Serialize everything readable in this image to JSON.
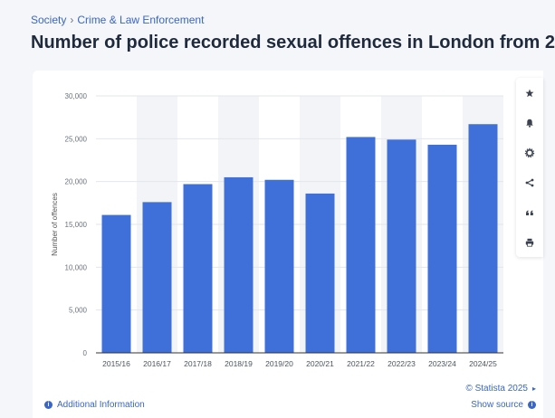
{
  "breadcrumb": {
    "items": [
      "Society",
      "Crime & Law Enforcement"
    ],
    "separator": "›"
  },
  "page": {
    "title": "Number of police recorded sexual offences in London from 2"
  },
  "toolbar": {
    "icons": [
      "star-icon",
      "bell-icon",
      "gear-icon",
      "share-icon",
      "quote-icon",
      "print-icon"
    ]
  },
  "footer": {
    "additional_info": "Additional Information",
    "copyright": "© Statista 2025",
    "show_source": "Show source"
  },
  "colors": {
    "bar": "#3f6fd8",
    "link": "#3a66c4",
    "band": "#f3f4f7"
  },
  "chart_data": {
    "type": "bar",
    "categories": [
      "2015/16",
      "2016/17",
      "2017/18",
      "2018/19",
      "2019/20",
      "2020/21",
      "2021/22",
      "2022/23",
      "2023/24",
      "2024/25"
    ],
    "values": [
      16100,
      17600,
      19700,
      20500,
      20200,
      18600,
      25200,
      24900,
      24300,
      26700
    ],
    "ylabel": "Number of offences",
    "ylim": [
      0,
      30000
    ],
    "yticks": [
      0,
      5000,
      10000,
      15000,
      20000,
      25000,
      30000
    ],
    "ytick_labels": [
      "0",
      "5,000",
      "10,000",
      "15,000",
      "20,000",
      "25,000",
      "30,000"
    ],
    "grid": true
  }
}
